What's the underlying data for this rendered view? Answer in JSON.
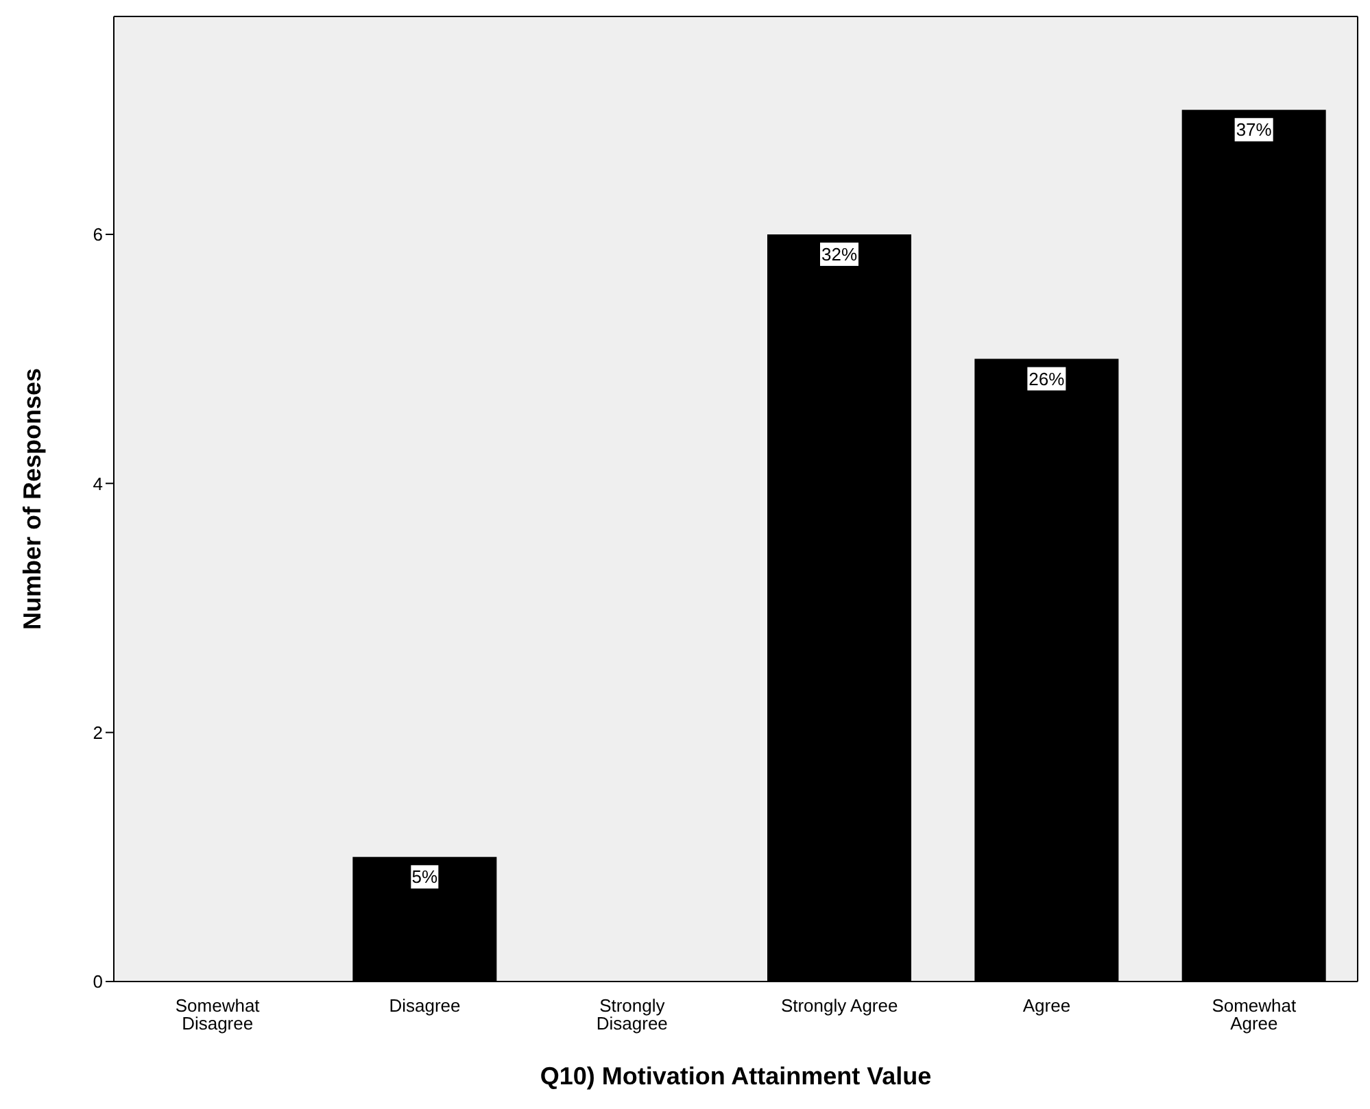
{
  "chart_data": {
    "type": "bar",
    "xlabel": "Q10) Motivation Attainment Value",
    "ylabel": "Number of Responses",
    "categories": [
      "Somewhat Disagree",
      "Disagree",
      "Strongly Disagree",
      "Strongly Agree",
      "Agree",
      "Somewhat Agree"
    ],
    "values": [
      0,
      1,
      0,
      6,
      5,
      7
    ],
    "annotations": [
      {
        "text": "5%",
        "x": "Disagree",
        "y": 1
      },
      {
        "text": "32%",
        "x": "Strongly Agree",
        "y": 6
      },
      {
        "text": "26%",
        "x": "Agree",
        "y": 5
      },
      {
        "text": "37%",
        "x": "Somewhat Agree",
        "y": 7
      }
    ],
    "color": "#000000",
    "ylim": [
      0,
      7.75
    ],
    "yticks": [
      0,
      2,
      4,
      6
    ],
    "grid": false,
    "legend": false
  }
}
